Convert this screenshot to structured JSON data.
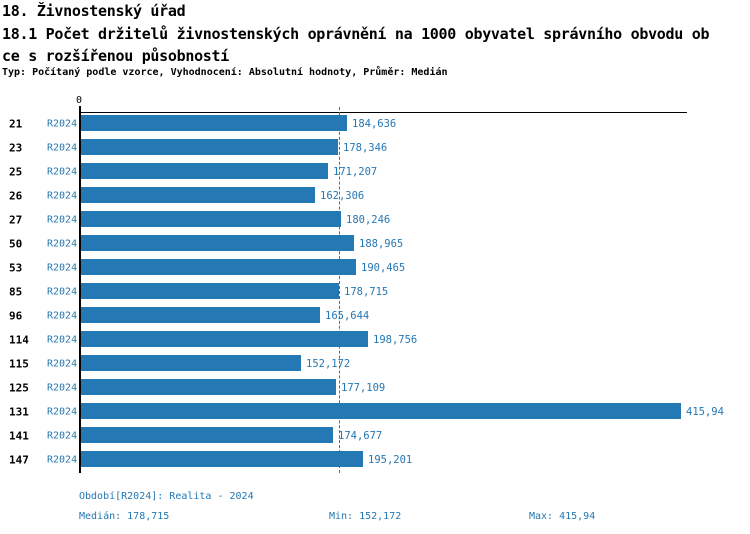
{
  "header": {
    "title": "18. Živnostenský úřad",
    "subtitle_line1": "18.1 Počet držitelů živnostenských oprávnění na 1000 obyvatel správního obvodu ob",
    "subtitle_line2": "ce s rozšířenou působností",
    "meta": "Typ: Počítaný podle vzorce, Vyhodnocení: Absolutní hodnoty, Průměr: Medián"
  },
  "chart_data": {
    "type": "bar",
    "orientation": "horizontal",
    "title": "Počet držitelů živnostenských oprávnění na 1000 obyvatel správního obvodu obce s rozšířenou působností",
    "series_label": "R2024",
    "categories": [
      "21",
      "23",
      "25",
      "26",
      "27",
      "50",
      "53",
      "85",
      "96",
      "114",
      "115",
      "125",
      "131",
      "141",
      "147"
    ],
    "values": [
      184.636,
      178.346,
      171.207,
      162.306,
      180.246,
      188.965,
      190.465,
      178.715,
      165.644,
      198.756,
      152.172,
      177.109,
      415.94,
      174.677,
      195.201
    ],
    "value_labels": [
      "184,636",
      "178,346",
      "171,207",
      "162,306",
      "180,246",
      "188,965",
      "190,465",
      "178,715",
      "165,644",
      "198,756",
      "152,172",
      "177,109",
      "415,94",
      "174,677",
      "195,201"
    ],
    "axis": {
      "zero_label": "0",
      "xlim": [
        0,
        419.5
      ],
      "grid": false
    },
    "median": {
      "value": 178.715,
      "label": "178,715",
      "style": "dashed-vertical-line"
    },
    "legend_position": "none",
    "colors": {
      "bar": "#2478b4",
      "accent_text": "#2478b4",
      "axis": "#000000"
    }
  },
  "footer": {
    "period": "Období[R2024]: Realita - 2024",
    "median": "Medián: 178,715",
    "min": "Min: 152,172",
    "max": "Max: 415,94"
  }
}
